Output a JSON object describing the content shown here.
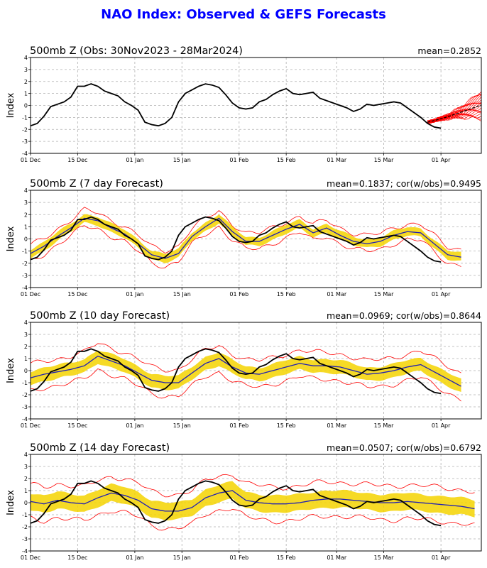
{
  "page_title": "NAO Index: Observed & GEFS Forecasts",
  "colors": {
    "title": "#0000ff",
    "observed": "#000000",
    "ens_mean": "#1f1fb4",
    "spread": "#f5d400",
    "members": "#ff0000",
    "grid": "#b0b0b0"
  },
  "chart_data": [
    {
      "type": "line",
      "title": "500mb Z (Obs: 30Nov2023 - 28Mar2024)",
      "stats": "mean=0.2852",
      "ylabel": "Index",
      "ylim": [
        -4,
        4
      ],
      "yticks": [
        "-4",
        "-3",
        "-2",
        "-1",
        "0",
        "1",
        "2",
        "3",
        "4"
      ],
      "xticks": [
        {
          "day": 0,
          "label": "01 Dec"
        },
        {
          "day": 14,
          "label": "15 Dec"
        },
        {
          "day": 31,
          "label": "01 Jan"
        },
        {
          "day": 45,
          "label": "15 Jan"
        },
        {
          "day": 62,
          "label": "01 Feb"
        },
        {
          "day": 76,
          "label": "15 Feb"
        },
        {
          "day": 91,
          "label": "01 Mar"
        },
        {
          "day": 105,
          "label": "15 Mar"
        },
        {
          "day": 122,
          "label": "01 Apr"
        }
      ],
      "xlim": [
        0,
        134
      ],
      "observed": {
        "x": [
          0,
          2,
          4,
          6,
          8,
          10,
          12,
          14,
          16,
          18,
          20,
          22,
          24,
          26,
          28,
          30,
          32,
          34,
          36,
          38,
          40,
          42,
          44,
          46,
          48,
          50,
          52,
          54,
          56,
          58,
          60,
          62,
          64,
          66,
          68,
          70,
          72,
          74,
          76,
          78,
          80,
          82,
          84,
          86,
          88,
          90,
          92,
          94,
          96,
          98,
          100,
          102,
          104,
          106,
          108,
          110,
          112,
          114,
          116,
          118,
          120,
          122
        ],
        "y": [
          -1.7,
          -1.5,
          -0.9,
          -0.1,
          0.1,
          0.3,
          0.7,
          1.6,
          1.6,
          1.8,
          1.6,
          1.2,
          1.0,
          0.8,
          0.3,
          0.0,
          -0.4,
          -1.4,
          -1.6,
          -1.7,
          -1.5,
          -1.0,
          0.3,
          1.0,
          1.3,
          1.6,
          1.8,
          1.7,
          1.5,
          0.9,
          0.2,
          -0.2,
          -0.3,
          -0.2,
          0.3,
          0.5,
          0.9,
          1.2,
          1.4,
          1.0,
          0.9,
          1.0,
          1.1,
          0.6,
          0.4,
          0.2,
          0.0,
          -0.2,
          -0.5,
          -0.3,
          0.1,
          0.0,
          0.1,
          0.2,
          0.3,
          0.2,
          -0.2,
          -0.6,
          -1.0,
          -1.5,
          -1.8,
          -1.9
        ]
      },
      "members": {
        "start_day": 118,
        "start_value": -1.4,
        "end_day": 134,
        "end_range": [
          -1.8,
          0.6
        ],
        "count": 21
      },
      "ens_mean": null,
      "spread_half_width": null
    },
    {
      "type": "line",
      "title": "500mb Z (7 day Forecast)",
      "stats": "mean=0.1837; cor(w/obs)=0.9495",
      "ylabel": "Index",
      "ylim": [
        -4,
        4
      ],
      "yticks": [
        "-4",
        "-3",
        "-2",
        "-1",
        "0",
        "1",
        "2",
        "3",
        "4"
      ],
      "xticks": [
        {
          "day": 0,
          "label": "01 Dec"
        },
        {
          "day": 14,
          "label": "15 Dec"
        },
        {
          "day": 31,
          "label": "01 Jan"
        },
        {
          "day": 45,
          "label": "15 Jan"
        },
        {
          "day": 62,
          "label": "01 Feb"
        },
        {
          "day": 76,
          "label": "15 Feb"
        },
        {
          "day": 91,
          "label": "01 Mar"
        },
        {
          "day": 105,
          "label": "15 Mar"
        },
        {
          "day": 122,
          "label": "01 Apr"
        }
      ],
      "xlim": [
        0,
        134
      ],
      "observed_ref": 0,
      "ens_mean": {
        "x": [
          0,
          4,
          8,
          12,
          16,
          20,
          24,
          28,
          32,
          36,
          40,
          44,
          48,
          52,
          56,
          60,
          64,
          68,
          72,
          76,
          80,
          84,
          88,
          92,
          96,
          100,
          104,
          108,
          112,
          116,
          120,
          124,
          128
        ],
        "y": [
          -1.2,
          -0.6,
          0.2,
          0.9,
          1.7,
          1.5,
          0.9,
          0.4,
          -0.4,
          -1.3,
          -1.6,
          -1.2,
          0.2,
          1.0,
          1.7,
          0.6,
          -0.2,
          -0.2,
          0.3,
          0.8,
          1.2,
          0.5,
          0.9,
          0.3,
          -0.2,
          -0.4,
          -0.2,
          0.3,
          0.6,
          0.5,
          -0.4,
          -1.3,
          -1.5
        ]
      },
      "spread_half_width": 0.35,
      "envelope_half_width": 0.65
    },
    {
      "type": "line",
      "title": "500mb Z (10 day Forecast)",
      "stats": "mean=0.0969; cor(w/obs)=0.8644",
      "ylabel": "Index",
      "ylim": [
        -4,
        4
      ],
      "yticks": [
        "-4",
        "-3",
        "-2",
        "-1",
        "0",
        "1",
        "2",
        "3",
        "4"
      ],
      "xticks": [
        {
          "day": 0,
          "label": "01 Dec"
        },
        {
          "day": 14,
          "label": "15 Dec"
        },
        {
          "day": 31,
          "label": "01 Jan"
        },
        {
          "day": 45,
          "label": "15 Jan"
        },
        {
          "day": 62,
          "label": "01 Feb"
        },
        {
          "day": 76,
          "label": "15 Feb"
        },
        {
          "day": 91,
          "label": "01 Mar"
        },
        {
          "day": 105,
          "label": "15 Mar"
        },
        {
          "day": 122,
          "label": "01 Apr"
        }
      ],
      "xlim": [
        0,
        134
      ],
      "observed_ref": 0,
      "ens_mean": {
        "x": [
          0,
          4,
          8,
          12,
          16,
          20,
          24,
          28,
          32,
          36,
          40,
          44,
          48,
          52,
          56,
          60,
          64,
          68,
          72,
          76,
          80,
          84,
          88,
          92,
          96,
          100,
          104,
          108,
          112,
          116,
          120,
          124,
          128
        ],
        "y": [
          -0.6,
          -0.3,
          -0.1,
          0.1,
          0.4,
          1.2,
          0.8,
          0.4,
          -0.2,
          -0.8,
          -1.0,
          -1.0,
          -0.2,
          0.6,
          1.0,
          0.3,
          -0.2,
          -0.3,
          0.0,
          0.3,
          0.6,
          0.4,
          0.4,
          0.3,
          0.0,
          -0.3,
          -0.2,
          0.0,
          0.3,
          0.5,
          -0.1,
          -0.7,
          -1.3
        ]
      },
      "spread_half_width": 0.55,
      "envelope_half_width": 1.1
    },
    {
      "type": "line",
      "title": "500mb Z (14 day Forecast)",
      "stats": "mean=0.0507; cor(w/obs)=0.6792",
      "ylabel": "Index",
      "ylim": [
        -4,
        4
      ],
      "yticks": [
        "-4",
        "-3",
        "-2",
        "-1",
        "0",
        "1",
        "2",
        "3",
        "4"
      ],
      "xticks": [
        {
          "day": 0,
          "label": "01 Dec"
        },
        {
          "day": 14,
          "label": "15 Dec"
        },
        {
          "day": 31,
          "label": "01 Jan"
        },
        {
          "day": 45,
          "label": "15 Jan"
        },
        {
          "day": 62,
          "label": "01 Feb"
        },
        {
          "day": 76,
          "label": "15 Feb"
        },
        {
          "day": 91,
          "label": "01 Mar"
        },
        {
          "day": 105,
          "label": "15 Mar"
        },
        {
          "day": 122,
          "label": "01 Apr"
        }
      ],
      "xlim": [
        0,
        134
      ],
      "observed_ref": 0,
      "ens_mean": {
        "x": [
          0,
          4,
          8,
          12,
          16,
          20,
          24,
          28,
          32,
          36,
          40,
          44,
          48,
          52,
          56,
          60,
          64,
          68,
          72,
          76,
          80,
          84,
          88,
          92,
          96,
          100,
          104,
          108,
          112,
          116,
          120,
          124,
          128,
          132
        ],
        "y": [
          0.1,
          -0.1,
          0.2,
          0.0,
          -0.1,
          0.4,
          0.8,
          0.6,
          0.2,
          -0.5,
          -0.7,
          -0.7,
          -0.4,
          0.4,
          0.8,
          1.0,
          0.2,
          0.0,
          -0.1,
          -0.1,
          0.0,
          0.2,
          0.3,
          0.3,
          0.2,
          0.1,
          0.0,
          0.0,
          0.1,
          0.0,
          -0.1,
          -0.2,
          -0.3,
          -0.5
        ]
      },
      "spread_half_width": 0.7,
      "envelope_half_width": 1.4
    }
  ]
}
